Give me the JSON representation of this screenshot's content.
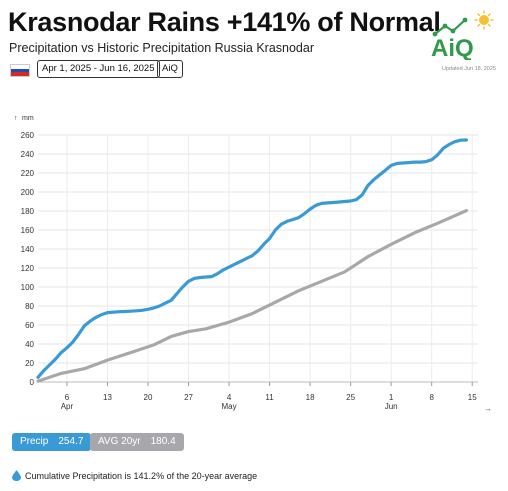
{
  "header": {
    "title": "Krasnodar Rains +141% of Normal",
    "subtitle": "Precipitation vs Historic Precipitation Russia Krasnodar",
    "date_range": "Apr 1, 2025 - Jun 16, 2025",
    "brand_tag": "AiQ",
    "flag_icon": "russia-flag-icon"
  },
  "logo": {
    "text": "AiQ",
    "updated": "Updated Jun 18, 2025"
  },
  "chart_data": {
    "type": "line",
    "ylabel": "mm",
    "ylim": [
      0,
      260
    ],
    "yticks": [
      0,
      20,
      40,
      60,
      80,
      100,
      120,
      140,
      160,
      180,
      200,
      220,
      240,
      260
    ],
    "xlim": [
      1,
      77
    ],
    "xticks": [
      {
        "day": 6,
        "label": "6"
      },
      {
        "day": 13,
        "label": "13"
      },
      {
        "day": 20,
        "label": "20"
      },
      {
        "day": 27,
        "label": "27"
      },
      {
        "day": 34,
        "label": "4"
      },
      {
        "day": 41,
        "label": "11"
      },
      {
        "day": 48,
        "label": "18"
      },
      {
        "day": 55,
        "label": "25"
      },
      {
        "day": 62,
        "label": "1"
      },
      {
        "day": 69,
        "label": "8"
      },
      {
        "day": 76,
        "label": "15"
      }
    ],
    "month_labels": [
      {
        "day": 6,
        "label": "Apr"
      },
      {
        "day": 34,
        "label": "May"
      },
      {
        "day": 62,
        "label": "Jun"
      }
    ],
    "grid": true,
    "series": [
      {
        "name": "Precip",
        "color": "#3a9ad5",
        "points": [
          [
            1,
            5
          ],
          [
            2,
            12
          ],
          [
            3,
            18
          ],
          [
            4,
            24
          ],
          [
            5,
            31
          ],
          [
            6,
            36
          ],
          [
            7,
            42
          ],
          [
            8,
            50
          ],
          [
            9,
            59
          ],
          [
            10,
            64
          ],
          [
            11,
            68
          ],
          [
            12,
            71
          ],
          [
            13,
            73
          ],
          [
            14,
            73.5
          ],
          [
            15,
            74
          ],
          [
            16,
            74.2
          ],
          [
            17,
            74.5
          ],
          [
            18,
            75
          ],
          [
            19,
            75.5
          ],
          [
            20,
            76.5
          ],
          [
            21,
            78
          ],
          [
            22,
            80
          ],
          [
            23,
            83
          ],
          [
            24,
            86
          ],
          [
            25,
            93
          ],
          [
            26,
            100
          ],
          [
            27,
            106
          ],
          [
            28,
            109
          ],
          [
            29,
            110
          ],
          [
            30,
            110.5
          ],
          [
            31,
            111
          ],
          [
            32,
            114
          ],
          [
            33,
            118
          ],
          [
            34,
            121
          ],
          [
            35,
            124
          ],
          [
            36,
            127
          ],
          [
            37,
            130
          ],
          [
            38,
            133
          ],
          [
            39,
            138
          ],
          [
            40,
            145
          ],
          [
            41,
            151
          ],
          [
            42,
            160
          ],
          [
            43,
            166
          ],
          [
            44,
            169
          ],
          [
            45,
            171
          ],
          [
            46,
            173
          ],
          [
            47,
            177
          ],
          [
            48,
            182
          ],
          [
            49,
            186
          ],
          [
            50,
            188
          ],
          [
            51,
            188.5
          ],
          [
            52,
            189
          ],
          [
            53,
            189.5
          ],
          [
            54,
            190
          ],
          [
            55,
            190.5
          ],
          [
            56,
            192
          ],
          [
            57,
            197
          ],
          [
            58,
            207
          ],
          [
            59,
            213
          ],
          [
            60,
            218
          ],
          [
            61,
            223
          ],
          [
            62,
            228
          ],
          [
            63,
            230
          ],
          [
            64,
            230.5
          ],
          [
            65,
            231
          ],
          [
            66,
            231.5
          ],
          [
            67,
            231.5
          ],
          [
            68,
            232
          ],
          [
            69,
            234
          ],
          [
            70,
            239
          ],
          [
            71,
            246
          ],
          [
            72,
            250
          ],
          [
            73,
            253
          ],
          [
            74,
            254.5
          ],
          [
            75,
            254.7
          ]
        ]
      },
      {
        "name": "AVG 20yr",
        "color": "#a8a8ac",
        "points": [
          [
            1,
            1
          ],
          [
            5,
            9
          ],
          [
            9,
            14
          ],
          [
            13,
            23
          ],
          [
            17,
            31
          ],
          [
            21,
            39
          ],
          [
            24,
            48
          ],
          [
            27,
            53
          ],
          [
            30,
            56
          ],
          [
            34,
            63
          ],
          [
            38,
            72
          ],
          [
            42,
            84
          ],
          [
            46,
            96
          ],
          [
            50,
            106
          ],
          [
            54,
            116
          ],
          [
            58,
            132
          ],
          [
            62,
            145
          ],
          [
            66,
            157
          ],
          [
            70,
            167
          ],
          [
            75,
            180.4
          ]
        ]
      }
    ]
  },
  "legend": {
    "precip": {
      "label": "Precip",
      "value": "254.7",
      "color": "#3a9ad5"
    },
    "avg": {
      "label": "AVG 20yr",
      "value": "180.4",
      "color": "#a8a8ac"
    }
  },
  "footer": {
    "text": "Cumulative Precipitation is 141.2% of the 20-year average"
  }
}
